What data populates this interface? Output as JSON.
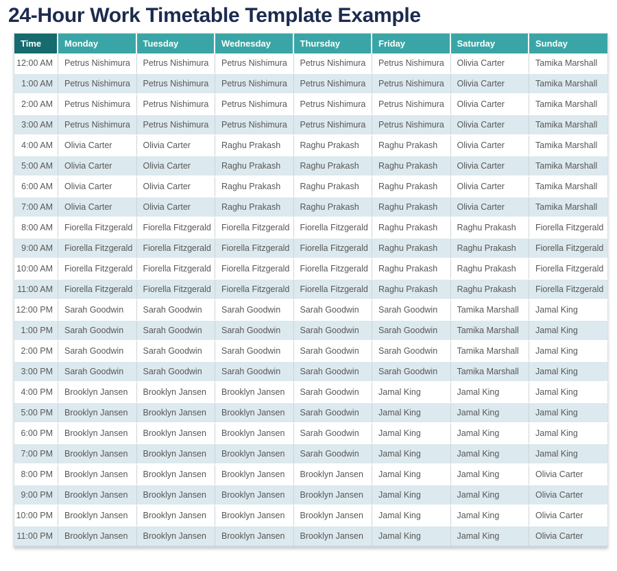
{
  "page": {
    "title": "24-Hour Work Timetable Template Example"
  },
  "colors": {
    "title": "#1c2b4f",
    "time_header_bg": "#156b6e",
    "day_header_bg": "#3aa5a6",
    "alt_row_bg": "#dce9ee",
    "cell_text": "#575757"
  },
  "table": {
    "columns": [
      "Time",
      "Monday",
      "Tuesday",
      "Wednesday",
      "Thursday",
      "Friday",
      "Saturday",
      "Sunday"
    ],
    "rows": [
      {
        "time": "12:00 AM",
        "cells": [
          "Petrus Nishimura",
          "Petrus Nishimura",
          "Petrus Nishimura",
          "Petrus Nishimura",
          "Petrus Nishimura",
          "Olivia Carter",
          "Tamika Marshall"
        ]
      },
      {
        "time": "1:00 AM",
        "cells": [
          "Petrus Nishimura",
          "Petrus Nishimura",
          "Petrus Nishimura",
          "Petrus Nishimura",
          "Petrus Nishimura",
          "Olivia Carter",
          "Tamika Marshall"
        ]
      },
      {
        "time": "2:00 AM",
        "cells": [
          "Petrus Nishimura",
          "Petrus Nishimura",
          "Petrus Nishimura",
          "Petrus Nishimura",
          "Petrus Nishimura",
          "Olivia Carter",
          "Tamika Marshall"
        ]
      },
      {
        "time": "3:00 AM",
        "cells": [
          "Petrus Nishimura",
          "Petrus Nishimura",
          "Petrus Nishimura",
          "Petrus Nishimura",
          "Petrus Nishimura",
          "Olivia Carter",
          "Tamika Marshall"
        ]
      },
      {
        "time": "4:00 AM",
        "cells": [
          "Olivia Carter",
          "Olivia Carter",
          "Raghu Prakash",
          "Raghu Prakash",
          "Raghu Prakash",
          "Olivia Carter",
          "Tamika Marshall"
        ]
      },
      {
        "time": "5:00 AM",
        "cells": [
          "Olivia Carter",
          "Olivia Carter",
          "Raghu Prakash",
          "Raghu Prakash",
          "Raghu Prakash",
          "Olivia Carter",
          "Tamika Marshall"
        ]
      },
      {
        "time": "6:00 AM",
        "cells": [
          "Olivia Carter",
          "Olivia Carter",
          "Raghu Prakash",
          "Raghu Prakash",
          "Raghu Prakash",
          "Olivia Carter",
          "Tamika Marshall"
        ]
      },
      {
        "time": "7:00 AM",
        "cells": [
          "Olivia Carter",
          "Olivia Carter",
          "Raghu Prakash",
          "Raghu Prakash",
          "Raghu Prakash",
          "Olivia Carter",
          "Tamika Marshall"
        ]
      },
      {
        "time": "8:00 AM",
        "cells": [
          "Fiorella Fitzgerald",
          "Fiorella Fitzgerald",
          "Fiorella Fitzgerald",
          "Fiorella Fitzgerald",
          "Raghu Prakash",
          "Raghu Prakash",
          "Fiorella Fitzgerald"
        ]
      },
      {
        "time": "9:00 AM",
        "cells": [
          "Fiorella Fitzgerald",
          "Fiorella Fitzgerald",
          "Fiorella Fitzgerald",
          "Fiorella Fitzgerald",
          "Raghu Prakash",
          "Raghu Prakash",
          "Fiorella Fitzgerald"
        ]
      },
      {
        "time": "10:00 AM",
        "cells": [
          "Fiorella Fitzgerald",
          "Fiorella Fitzgerald",
          "Fiorella Fitzgerald",
          "Fiorella Fitzgerald",
          "Raghu Prakash",
          "Raghu Prakash",
          "Fiorella Fitzgerald"
        ]
      },
      {
        "time": "11:00 AM",
        "cells": [
          "Fiorella Fitzgerald",
          "Fiorella Fitzgerald",
          "Fiorella Fitzgerald",
          "Fiorella Fitzgerald",
          "Raghu Prakash",
          "Raghu Prakash",
          "Fiorella Fitzgerald"
        ]
      },
      {
        "time": "12:00 PM",
        "cells": [
          "Sarah Goodwin",
          "Sarah Goodwin",
          "Sarah Goodwin",
          "Sarah Goodwin",
          "Sarah Goodwin",
          "Tamika Marshall",
          "Jamal King"
        ]
      },
      {
        "time": "1:00 PM",
        "cells": [
          "Sarah Goodwin",
          "Sarah Goodwin",
          "Sarah Goodwin",
          "Sarah Goodwin",
          "Sarah Goodwin",
          "Tamika Marshall",
          "Jamal King"
        ]
      },
      {
        "time": "2:00 PM",
        "cells": [
          "Sarah Goodwin",
          "Sarah Goodwin",
          "Sarah Goodwin",
          "Sarah Goodwin",
          "Sarah Goodwin",
          "Tamika Marshall",
          "Jamal King"
        ]
      },
      {
        "time": "3:00 PM",
        "cells": [
          "Sarah Goodwin",
          "Sarah Goodwin",
          "Sarah Goodwin",
          "Sarah Goodwin",
          "Sarah Goodwin",
          "Tamika Marshall",
          "Jamal King"
        ]
      },
      {
        "time": "4:00 PM",
        "cells": [
          "Brooklyn Jansen",
          "Brooklyn Jansen",
          "Brooklyn Jansen",
          "Sarah Goodwin",
          "Jamal King",
          "Jamal King",
          "Jamal King"
        ]
      },
      {
        "time": "5:00 PM",
        "cells": [
          "Brooklyn Jansen",
          "Brooklyn Jansen",
          "Brooklyn Jansen",
          "Sarah Goodwin",
          "Jamal King",
          "Jamal King",
          "Jamal King"
        ]
      },
      {
        "time": "6:00 PM",
        "cells": [
          "Brooklyn Jansen",
          "Brooklyn Jansen",
          "Brooklyn Jansen",
          "Sarah Goodwin",
          "Jamal King",
          "Jamal King",
          "Jamal King"
        ]
      },
      {
        "time": "7:00 PM",
        "cells": [
          "Brooklyn Jansen",
          "Brooklyn Jansen",
          "Brooklyn Jansen",
          "Sarah Goodwin",
          "Jamal King",
          "Jamal King",
          "Jamal King"
        ]
      },
      {
        "time": "8:00 PM",
        "cells": [
          "Brooklyn Jansen",
          "Brooklyn Jansen",
          "Brooklyn Jansen",
          "Brooklyn Jansen",
          "Jamal King",
          "Jamal King",
          "Olivia Carter"
        ]
      },
      {
        "time": "9:00 PM",
        "cells": [
          "Brooklyn Jansen",
          "Brooklyn Jansen",
          "Brooklyn Jansen",
          "Brooklyn Jansen",
          "Jamal King",
          "Jamal King",
          "Olivia Carter"
        ]
      },
      {
        "time": "10:00 PM",
        "cells": [
          "Brooklyn Jansen",
          "Brooklyn Jansen",
          "Brooklyn Jansen",
          "Brooklyn Jansen",
          "Jamal King",
          "Jamal King",
          "Olivia Carter"
        ]
      },
      {
        "time": "11:00 PM",
        "cells": [
          "Brooklyn Jansen",
          "Brooklyn Jansen",
          "Brooklyn Jansen",
          "Brooklyn Jansen",
          "Jamal King",
          "Jamal King",
          "Olivia Carter"
        ]
      }
    ]
  }
}
